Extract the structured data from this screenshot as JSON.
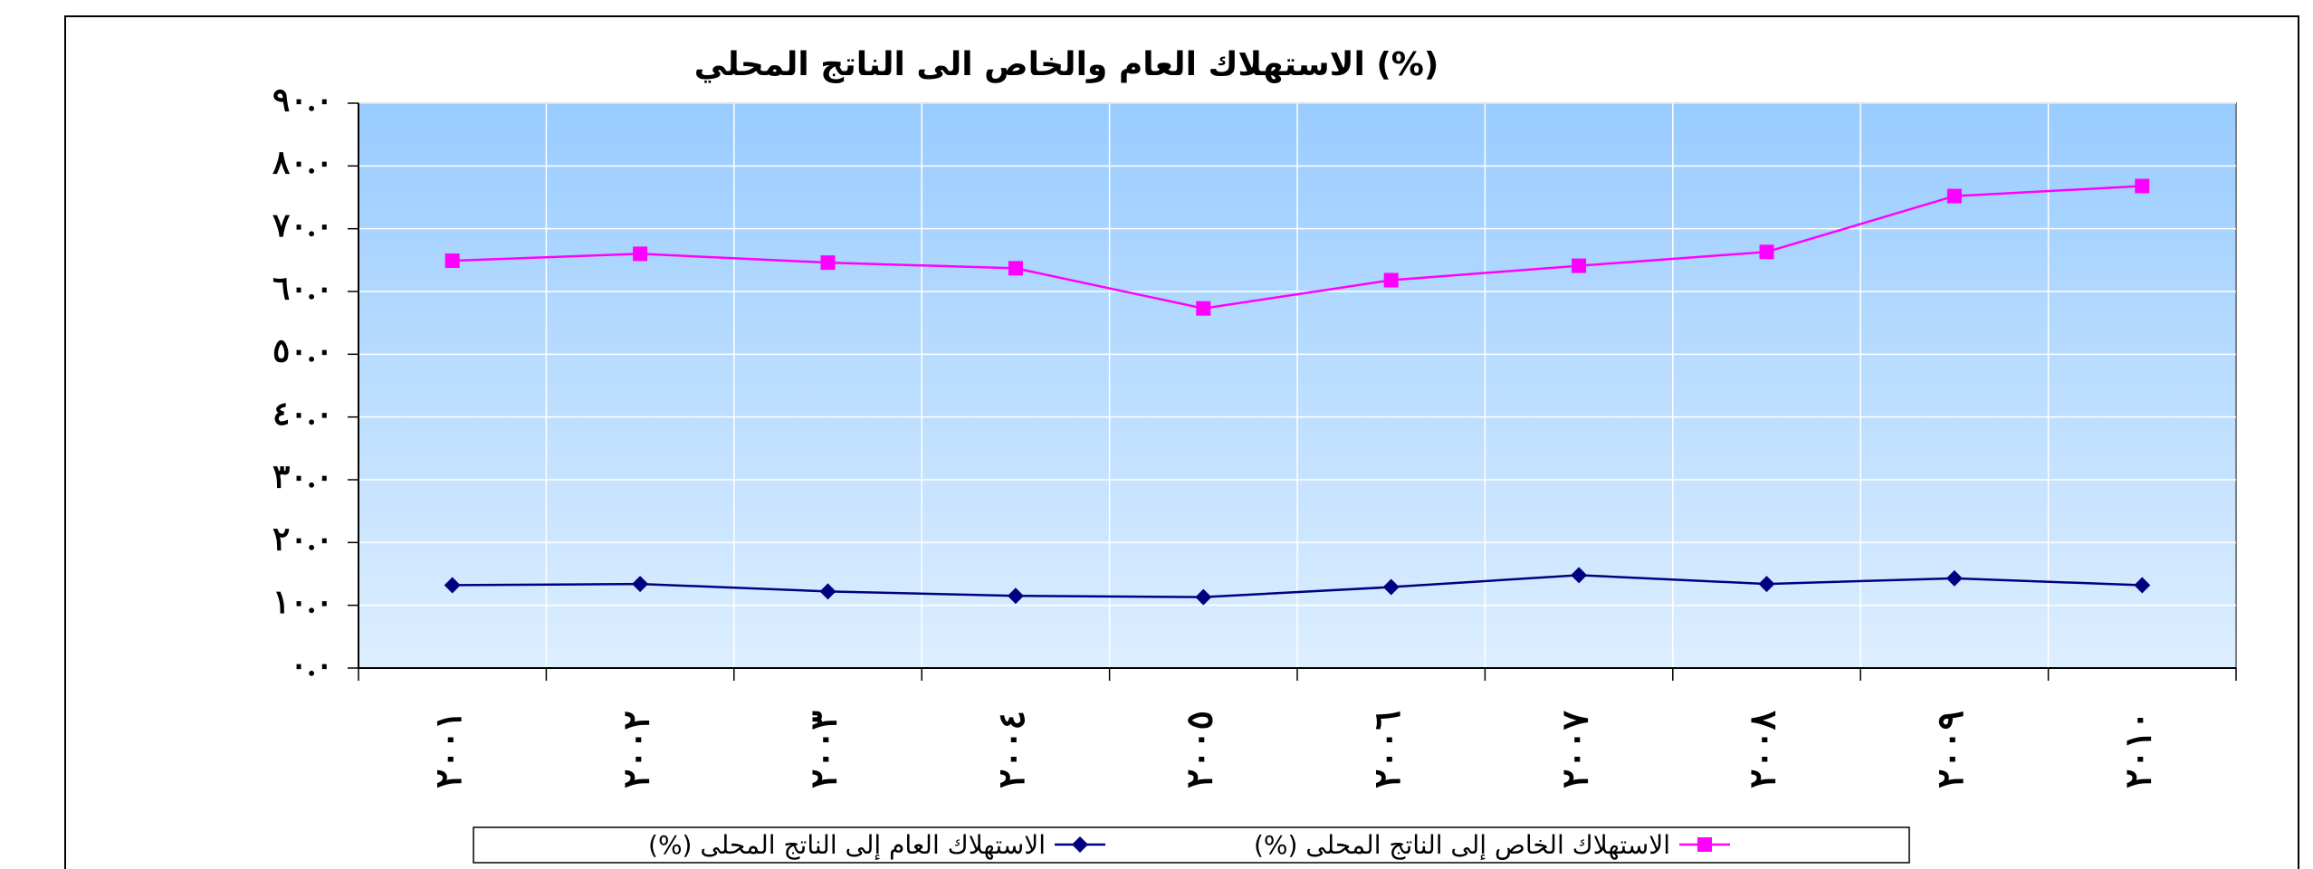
{
  "chart_data": {
    "type": "line",
    "title": "الاستهلاك العام والخاص الى الناتج المحلي (%)",
    "categories": [
      "٢٠٠١",
      "٢٠٠٢",
      "٢٠٠٣",
      "٢٠٠٤",
      "٢٠٠٥",
      "٢٠٠٦",
      "٢٠٠٧",
      "٢٠٠٨",
      "٢٠٠٩",
      "٢٠١٠"
    ],
    "series": [
      {
        "name": "الاستهلاك العام إلى الناتج المحلى (%)",
        "color": "#000080",
        "marker": "diamond",
        "values": [
          13.2,
          13.4,
          12.2,
          11.5,
          11.3,
          12.9,
          14.8,
          13.4,
          14.3,
          13.2
        ]
      },
      {
        "name": "الاستهلاك الخاص إلى الناتج المحلى (%)",
        "color": "#ff00ff",
        "marker": "square",
        "values": [
          64.9,
          66.0,
          64.6,
          63.7,
          57.3,
          61.8,
          64.1,
          66.3,
          75.2,
          76.8
        ]
      }
    ],
    "ylim": [
      0,
      90
    ],
    "yticks": [
      {
        "value": 0,
        "label": "٠.٠"
      },
      {
        "value": 10,
        "label": "١٠.٠"
      },
      {
        "value": 20,
        "label": "٢٠.٠"
      },
      {
        "value": 30,
        "label": "٣٠.٠"
      },
      {
        "value": 40,
        "label": "٤٠.٠"
      },
      {
        "value": 50,
        "label": "٥٠.٠"
      },
      {
        "value": 60,
        "label": "٦٠.٠"
      },
      {
        "value": 70,
        "label": "٧٠.٠"
      },
      {
        "value": 80,
        "label": "٨٠.٠"
      },
      {
        "value": 90,
        "label": "٩٠.٠"
      }
    ],
    "grid": true,
    "legend": "bottom"
  }
}
